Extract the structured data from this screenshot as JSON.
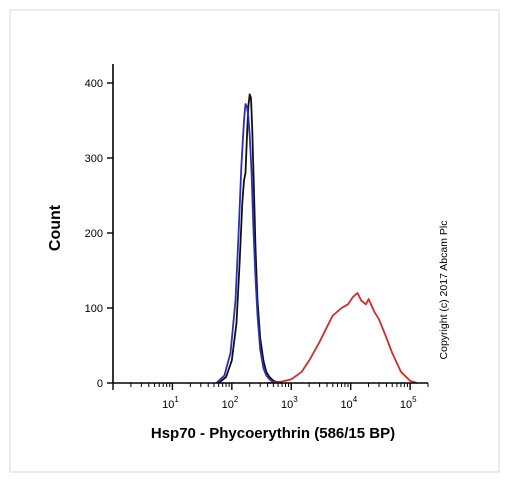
{
  "chart_data": {
    "type": "line",
    "title": "",
    "xlabel": "Hsp70 - Phycoerythrin (586/15 BP)",
    "ylabel": "Count",
    "xscale": "log",
    "xlim": [
      1,
      200000
    ],
    "ylim": [
      0,
      420
    ],
    "x_ticks": [
      {
        "value": 10,
        "base": "10",
        "exp": "1"
      },
      {
        "value": 100,
        "base": "10",
        "exp": "2"
      },
      {
        "value": 1000,
        "base": "10",
        "exp": "3"
      },
      {
        "value": 10000,
        "base": "10",
        "exp": "4"
      },
      {
        "value": 100000,
        "base": "10",
        "exp": "5"
      }
    ],
    "y_ticks": [
      {
        "value": 0,
        "label": "0"
      },
      {
        "value": 100,
        "label": "100"
      },
      {
        "value": 200,
        "label": "200"
      },
      {
        "value": 300,
        "label": "300"
      },
      {
        "value": 400,
        "label": "400"
      }
    ],
    "grid": false,
    "legend": "none",
    "annotation": "Copyright (c) 2017 Abcam Plc",
    "series": [
      {
        "color": "#111111",
        "x": [
          60,
          80,
          100,
          120,
          135,
          150,
          160,
          170,
          180,
          190,
          200,
          210,
          220,
          235,
          250,
          270,
          300,
          340,
          380,
          430,
          500,
          600,
          700
        ],
        "y": [
          0,
          8,
          30,
          80,
          160,
          240,
          270,
          280,
          330,
          370,
          385,
          380,
          340,
          260,
          180,
          110,
          60,
          30,
          15,
          8,
          3,
          1,
          0
        ]
      },
      {
        "color": "#2b2fb5",
        "x": [
          55,
          75,
          95,
          115,
          130,
          145,
          160,
          170,
          180,
          190,
          200,
          215,
          230,
          250,
          270,
          300,
          340,
          380,
          430,
          500,
          560
        ],
        "y": [
          0,
          10,
          40,
          110,
          200,
          290,
          350,
          372,
          368,
          355,
          330,
          280,
          210,
          140,
          90,
          45,
          20,
          10,
          5,
          1,
          0
        ]
      },
      {
        "color": "#d42a2a",
        "x": [
          400,
          700,
          1000,
          1500,
          2000,
          3000,
          4000,
          5000,
          7000,
          9000,
          11000,
          13000,
          15000,
          18000,
          20000,
          25000,
          30000,
          40000,
          50000,
          70000,
          100000,
          130000
        ],
        "y": [
          0,
          2,
          5,
          15,
          30,
          55,
          75,
          90,
          100,
          105,
          115,
          120,
          110,
          105,
          112,
          95,
          85,
          60,
          40,
          15,
          3,
          0
        ]
      }
    ]
  }
}
